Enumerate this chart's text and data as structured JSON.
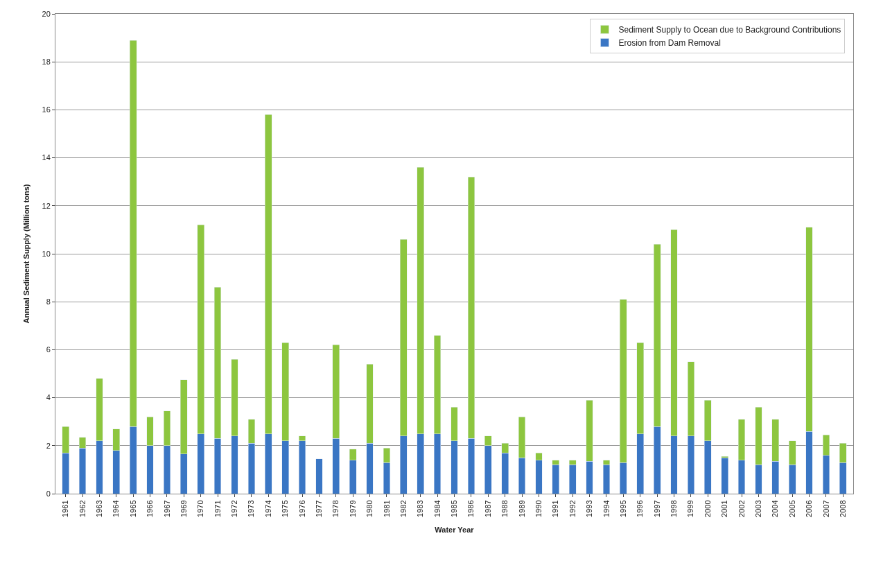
{
  "chart_data": {
    "type": "bar",
    "stacked": true,
    "xlabel": "Water Year",
    "ylabel": "Annual Sediment Supply (Million tons)",
    "categories": [
      "1961",
      "1962",
      "1963",
      "1964",
      "1965",
      "1966",
      "1967",
      "1969",
      "1970",
      "1971",
      "1972",
      "1973",
      "1974",
      "1975",
      "1976",
      "1977",
      "1978",
      "1979",
      "1980",
      "1981",
      "1982",
      "1983",
      "1984",
      "1985",
      "1986",
      "1987",
      "1988",
      "1989",
      "1990",
      "1991",
      "1992",
      "1993",
      "1994",
      "1995",
      "1996",
      "1997",
      "1998",
      "1999",
      "2000",
      "2001",
      "2002",
      "2003",
      "2004",
      "2005",
      "2006",
      "2007",
      "2008"
    ],
    "series": [
      {
        "name": "Erosion from Dam Removal",
        "color": "#3a76c4",
        "values": [
          1.7,
          1.9,
          2.2,
          1.8,
          2.8,
          2.0,
          2.0,
          1.65,
          2.5,
          2.3,
          2.4,
          2.1,
          2.5,
          2.2,
          2.2,
          1.45,
          2.3,
          1.4,
          2.1,
          1.3,
          2.4,
          2.5,
          2.5,
          2.2,
          2.3,
          2.0,
          1.7,
          1.5,
          1.4,
          1.2,
          1.2,
          1.35,
          1.2,
          1.3,
          2.5,
          2.8,
          2.4,
          2.4,
          2.2,
          1.5,
          1.4,
          1.2,
          1.35,
          1.2,
          2.6,
          1.6,
          1.3
        ]
      },
      {
        "name": "Sediment Supply to Ocean due to Background Contributions",
        "color": "#8dc63f",
        "values": [
          1.1,
          0.45,
          2.6,
          0.9,
          16.1,
          1.2,
          1.45,
          3.1,
          8.7,
          6.3,
          3.2,
          1.0,
          13.3,
          4.1,
          0.2,
          null,
          3.9,
          0.45,
          3.3,
          0.6,
          8.2,
          11.1,
          4.1,
          1.4,
          10.9,
          0.4,
          0.4,
          1.7,
          0.3,
          0.2,
          0.2,
          2.55,
          0.2,
          6.8,
          3.8,
          7.6,
          8.6,
          3.1,
          1.7,
          0.05,
          1.7,
          2.4,
          1.75,
          1.0,
          8.5,
          0.85,
          0.8
        ]
      }
    ],
    "ylim": [
      0,
      20
    ],
    "yticks": [
      0,
      2,
      4,
      6,
      8,
      10,
      12,
      14,
      16,
      18,
      20
    ],
    "grid": "y",
    "legend": "top right"
  }
}
